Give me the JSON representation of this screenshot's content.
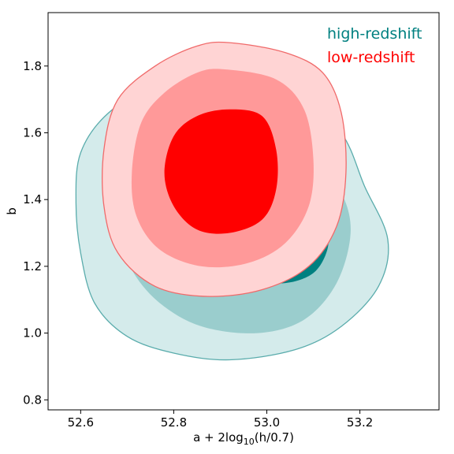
{
  "chart_data": {
    "type": "contour",
    "xlabel": {
      "prefix": "a + 2log",
      "sub": "10",
      "suffix": "(h/0.7)"
    },
    "ylabel": "b",
    "xlim": [
      52.53,
      53.37
    ],
    "ylim": [
      0.77,
      1.96
    ],
    "xticks": [
      52.6,
      52.8,
      53.0,
      53.2
    ],
    "xtick_labels": [
      "52.6",
      "52.8",
      "53.0",
      "53.2"
    ],
    "yticks": [
      0.8,
      1.0,
      1.2,
      1.4,
      1.6,
      1.8
    ],
    "ytick_labels": [
      "0.8",
      "1.0",
      "1.2",
      "1.4",
      "1.6",
      "1.8"
    ],
    "grid": false,
    "legend_position": "top-right",
    "series": [
      {
        "name": "high-redshift",
        "color": "#008080",
        "levels": [
          {
            "fill": "#d4ebeb",
            "points": [
              [
                52.95,
                1.79
              ],
              [
                53.06,
                1.74
              ],
              [
                53.16,
                1.6
              ],
              [
                53.21,
                1.44
              ],
              [
                53.26,
                1.28
              ],
              [
                53.24,
                1.14
              ],
              [
                53.16,
                1.02
              ],
              [
                53.06,
                0.95
              ],
              [
                52.92,
                0.92
              ],
              [
                52.8,
                0.94
              ],
              [
                52.7,
                0.99
              ],
              [
                52.63,
                1.09
              ],
              [
                52.6,
                1.24
              ],
              [
                52.59,
                1.39
              ],
              [
                52.6,
                1.54
              ],
              [
                52.66,
                1.66
              ],
              [
                52.76,
                1.74
              ],
              [
                52.85,
                1.77
              ]
            ]
          },
          {
            "fill": "#9acdcd",
            "points": [
              [
                53.0,
                1.58
              ],
              [
                53.1,
                1.52
              ],
              [
                53.16,
                1.42
              ],
              [
                53.18,
                1.3
              ],
              [
                53.15,
                1.15
              ],
              [
                53.08,
                1.04
              ],
              [
                52.98,
                1.0
              ],
              [
                52.86,
                1.02
              ],
              [
                52.77,
                1.09
              ],
              [
                52.71,
                1.19
              ],
              [
                52.69,
                1.3
              ],
              [
                52.72,
                1.42
              ],
              [
                52.8,
                1.51
              ],
              [
                52.9,
                1.57
              ]
            ]
          },
          {
            "fill": "#008080",
            "points": [
              [
                53.05,
                1.3
              ],
              [
                53.1,
                1.34
              ],
              [
                53.13,
                1.33
              ],
              [
                53.13,
                1.25
              ],
              [
                53.1,
                1.18
              ],
              [
                53.04,
                1.15
              ],
              [
                52.97,
                1.16
              ],
              [
                52.92,
                1.2
              ],
              [
                52.93,
                1.27
              ],
              [
                52.99,
                1.3
              ]
            ]
          }
        ]
      },
      {
        "name": "low-redshift",
        "color": "#ff0000",
        "levels": [
          {
            "fill": "#ffd4d4",
            "points": [
              [
                52.92,
                1.87
              ],
              [
                53.04,
                1.84
              ],
              [
                53.12,
                1.78
              ],
              [
                53.16,
                1.66
              ],
              [
                53.17,
                1.48
              ],
              [
                53.15,
                1.32
              ],
              [
                53.09,
                1.2
              ],
              [
                52.99,
                1.13
              ],
              [
                52.87,
                1.11
              ],
              [
                52.76,
                1.14
              ],
              [
                52.68,
                1.24
              ],
              [
                52.65,
                1.38
              ],
              [
                52.65,
                1.55
              ],
              [
                52.68,
                1.7
              ],
              [
                52.76,
                1.8
              ],
              [
                52.85,
                1.86
              ]
            ]
          },
          {
            "fill": "#ff9999",
            "points": [
              [
                52.91,
                1.79
              ],
              [
                53.02,
                1.76
              ],
              [
                53.08,
                1.67
              ],
              [
                53.1,
                1.52
              ],
              [
                53.09,
                1.38
              ],
              [
                53.04,
                1.27
              ],
              [
                52.96,
                1.21
              ],
              [
                52.86,
                1.2
              ],
              [
                52.77,
                1.25
              ],
              [
                52.72,
                1.35
              ],
              [
                52.71,
                1.48
              ],
              [
                52.73,
                1.63
              ],
              [
                52.78,
                1.72
              ],
              [
                52.85,
                1.78
              ]
            ]
          },
          {
            "fill": "#ff0000",
            "points": [
              [
                52.92,
                1.67
              ],
              [
                52.99,
                1.65
              ],
              [
                53.02,
                1.55
              ],
              [
                53.02,
                1.43
              ],
              [
                52.99,
                1.34
              ],
              [
                52.92,
                1.3
              ],
              [
                52.85,
                1.31
              ],
              [
                52.8,
                1.38
              ],
              [
                52.78,
                1.48
              ],
              [
                52.8,
                1.59
              ],
              [
                52.85,
                1.65
              ]
            ]
          }
        ]
      }
    ]
  }
}
